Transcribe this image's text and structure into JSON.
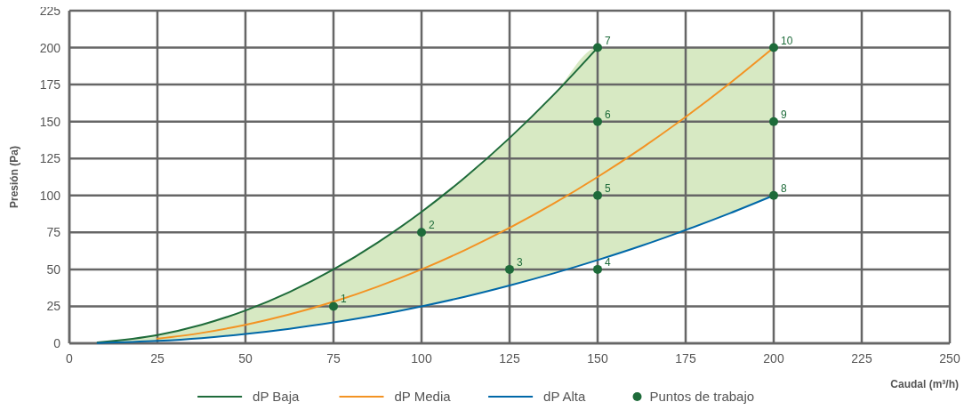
{
  "chart_data": {
    "type": "line",
    "xlabel": "Caudal (m³/h)",
    "ylabel": "Presión (Pa)",
    "xlim": [
      0,
      250
    ],
    "ylim": [
      0,
      225
    ],
    "xticks": [
      0,
      25,
      50,
      75,
      100,
      125,
      150,
      175,
      200,
      225,
      250
    ],
    "yticks": [
      0,
      25,
      50,
      75,
      100,
      125,
      150,
      175,
      200,
      225
    ],
    "grid": true,
    "legend": "bottom",
    "line_style": "solid",
    "series": [
      {
        "name": "dP Baja",
        "color": "#1e6b3a",
        "x": [
          8,
          25,
          37.5,
          50,
          62.5,
          75,
          87.5,
          100,
          112.5,
          125,
          137.5,
          150
        ],
        "values": [
          0.6,
          5.6,
          12.5,
          22.2,
          34.7,
          50,
          68.1,
          88.9,
          112.5,
          138.9,
          168.1,
          200
        ]
      },
      {
        "name": "dP Media",
        "color": "#f39323",
        "x": [
          25,
          37.5,
          50,
          62.5,
          75,
          87.5,
          100,
          112.5,
          125,
          137.5,
          150,
          162.5,
          175,
          187.5,
          200
        ],
        "values": [
          3.1,
          7,
          12.5,
          19.5,
          28.1,
          38.3,
          50,
          63.3,
          78.1,
          94.5,
          112.5,
          132,
          153.1,
          175.8,
          200
        ]
      },
      {
        "name": "dP Alta",
        "color": "#0068a8",
        "x": [
          8,
          25,
          37.5,
          50,
          62.5,
          75,
          87.5,
          100,
          112.5,
          125,
          137.5,
          150,
          162.5,
          175,
          187.5,
          200
        ],
        "values": [
          0.2,
          1.6,
          3.5,
          6.3,
          9.8,
          14.1,
          19.1,
          25,
          31.6,
          39.1,
          47.3,
          56.3,
          66,
          76.6,
          87.9,
          100
        ],
        "lower": [
          0.2,
          1.6,
          3.5,
          6.3,
          9.8,
          14.1,
          19.1,
          25,
          31.6,
          39.1,
          47.3,
          56.3,
          66,
          76.6,
          87.9,
          100
        ],
        "upper": [
          0.6,
          5.6,
          12.5,
          22.2,
          34.7,
          50,
          68.1,
          88.9,
          112.5,
          138.9,
          168.1,
          200,
          200,
          200,
          200,
          200
        ]
      },
      {
        "type": "scatter",
        "name": "Puntos de trabajo",
        "color": "#1e6b3a",
        "marker": "circle",
        "x": [
          75,
          100,
          125,
          150,
          150,
          150,
          150,
          200,
          200,
          200
        ],
        "values": [
          25,
          75,
          50,
          50,
          100,
          150,
          200,
          100,
          150,
          200
        ]
      }
    ],
    "annotations": [
      {
        "text": "1",
        "x": 75,
        "y": 25
      },
      {
        "text": "2",
        "x": 100,
        "y": 75
      },
      {
        "text": "3",
        "x": 125,
        "y": 50
      },
      {
        "text": "4",
        "x": 150,
        "y": 50
      },
      {
        "text": "5",
        "x": 150,
        "y": 100
      },
      {
        "text": "6",
        "x": 150,
        "y": 150
      },
      {
        "text": "7",
        "x": 150,
        "y": 200
      },
      {
        "text": "8",
        "x": 200,
        "y": 100
      },
      {
        "text": "9",
        "x": 200,
        "y": 150
      },
      {
        "text": "10",
        "x": 200,
        "y": 200
      }
    ]
  }
}
